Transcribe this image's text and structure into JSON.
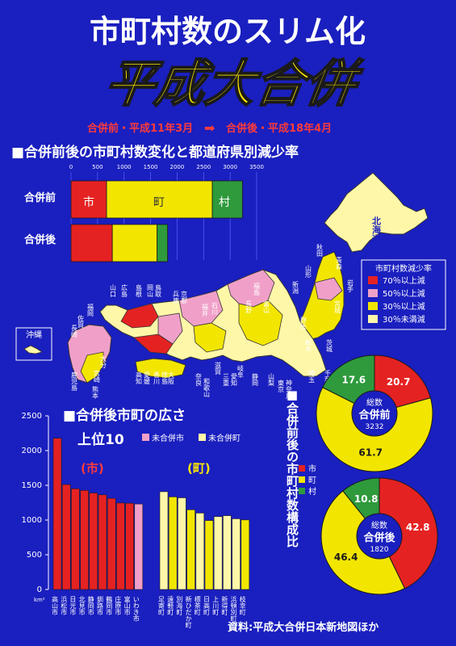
{
  "header": {
    "title": "市町村数のスリム化",
    "subtitle": "平成大合併",
    "period_before": "合併前・平成11年3月",
    "period_arrow": "➡",
    "period_after": "合併後・平成18年4月"
  },
  "chart1": {
    "heading": "■合併前後の市町村数変化と都道府県別減少率",
    "axis_ticks": [
      "0",
      "500",
      "1000",
      "1500",
      "2000",
      "2500",
      "3000",
      "3500"
    ],
    "rows": [
      {
        "label": "合併前",
        "seg_labels": [
          "市",
          "町",
          "村"
        ]
      },
      {
        "label": "合併後",
        "seg_labels": [
          "",
          "",
          ""
        ]
      }
    ]
  },
  "map": {
    "hokkaido": "北海道",
    "okinawa": "沖縄",
    "legend_title": "市町村数減少率",
    "legend": [
      {
        "label": "70％以上減",
        "color": "#e52222"
      },
      {
        "label": "50％以上減",
        "color": "#f0a0c8"
      },
      {
        "label": "30％以上減",
        "color": "#f2e600"
      },
      {
        "label": "30％未満減",
        "color": "#fff7a8"
      }
    ],
    "prefecture_labels": [
      "青森",
      "岩手",
      "秋田",
      "山形",
      "宮城",
      "新潟",
      "福島",
      "富山",
      "長野",
      "群馬",
      "栃木",
      "茨城",
      "千葉",
      "埼玉",
      "神奈川",
      "東京",
      "山梨",
      "静岡",
      "愛知",
      "岐阜",
      "三重",
      "滋賀",
      "石川",
      "福井",
      "京都",
      "兵庫",
      "大阪",
      "奈良",
      "和歌山",
      "岡山",
      "鳥取",
      "広島",
      "島根",
      "山口",
      "香川",
      "徳島",
      "愛媛",
      "高知",
      "福岡",
      "佐賀",
      "長崎",
      "熊本",
      "大分",
      "宮崎",
      "鹿児島"
    ]
  },
  "chart2": {
    "heading": "■合併後市町の広さ",
    "subheading": "上位10",
    "legend_city": "未合併市",
    "legend_town": "未合併町",
    "unit": "km²",
    "city_label": "(市)",
    "town_label": "(町)"
  },
  "pies_title": "■合併前後の市町村数構成比",
  "pie_legend": [
    {
      "label": "市",
      "color": "#e52222"
    },
    {
      "label": "町",
      "color": "#f2e600"
    },
    {
      "label": "村",
      "color": "#2e9a3c"
    }
  ],
  "pie_center_label": "総数",
  "source": "資料:平成大合併日本新地図ほか",
  "chart_data": [
    {
      "type": "bar",
      "orientation": "horizontal",
      "stacked": true,
      "title": "合併前後の市町村数変化",
      "categories": [
        "合併前",
        "合併後"
      ],
      "series": [
        {
          "name": "市",
          "values": [
            670,
            779
          ],
          "color": "#e52222"
        },
        {
          "name": "町",
          "values": [
            1994,
            844
          ],
          "color": "#f2e600"
        },
        {
          "name": "村",
          "values": [
            568,
            197
          ],
          "color": "#2e9a3c"
        }
      ],
      "xlim": [
        0,
        3500
      ],
      "ticks": [
        0,
        500,
        1000,
        1500,
        2000,
        2500,
        3000,
        3500
      ]
    },
    {
      "type": "bar",
      "title": "合併後市町の広さ 上位10",
      "ylabel": "km²",
      "ylim": [
        0,
        2500
      ],
      "yticks": [
        0,
        500,
        1000,
        1500,
        2000,
        2500
      ],
      "groups": [
        {
          "name": "市",
          "categories": [
            "高山市",
            "浜松市",
            "日光市",
            "北見市",
            "静岡市",
            "釧路市",
            "鶴岡市",
            "庄原市",
            "富山市",
            "いわき市"
          ],
          "values": [
            2178,
            1511,
            1450,
            1427,
            1389,
            1363,
            1312,
            1246,
            1242,
            1231
          ],
          "colors": [
            "#e52222",
            "#e52222",
            "#e52222",
            "#e52222",
            "#e52222",
            "#e52222",
            "#e52222",
            "#e52222",
            "#e52222",
            "#f0a0c8"
          ]
        },
        {
          "name": "町",
          "categories": [
            "足寄町",
            "遠軽町",
            "別海町",
            "新ひだか町",
            "標茶町",
            "日高町",
            "上川町",
            "新得町",
            "浜頓別町",
            "枝幸町"
          ],
          "values": [
            1408,
            1333,
            1320,
            1148,
            1100,
            993,
            1049,
            1063,
            1018,
            1002
          ],
          "colors": [
            "#fff7a8",
            "#f2e600",
            "#fff7a8",
            "#f2e600",
            "#fff7a8",
            "#f2e600",
            "#fff7a8",
            "#fff7a8",
            "#fff7a8",
            "#f2e600"
          ]
        }
      ]
    },
    {
      "type": "pie",
      "title": "合併前",
      "total": "3232",
      "labels": [
        "市",
        "町",
        "村"
      ],
      "values": [
        20.7,
        61.7,
        17.6
      ],
      "display": [
        "20.7",
        "61.7",
        "17.6"
      ],
      "colors": [
        "#e52222",
        "#f2e600",
        "#2e9a3c"
      ]
    },
    {
      "type": "pie",
      "title": "合併後",
      "total": "1820",
      "labels": [
        "市",
        "町",
        "村"
      ],
      "values": [
        42.8,
        46.4,
        10.8
      ],
      "display": [
        "42.8",
        "46.4",
        "10.8"
      ],
      "colors": [
        "#e52222",
        "#f2e600",
        "#2e9a3c"
      ]
    }
  ]
}
